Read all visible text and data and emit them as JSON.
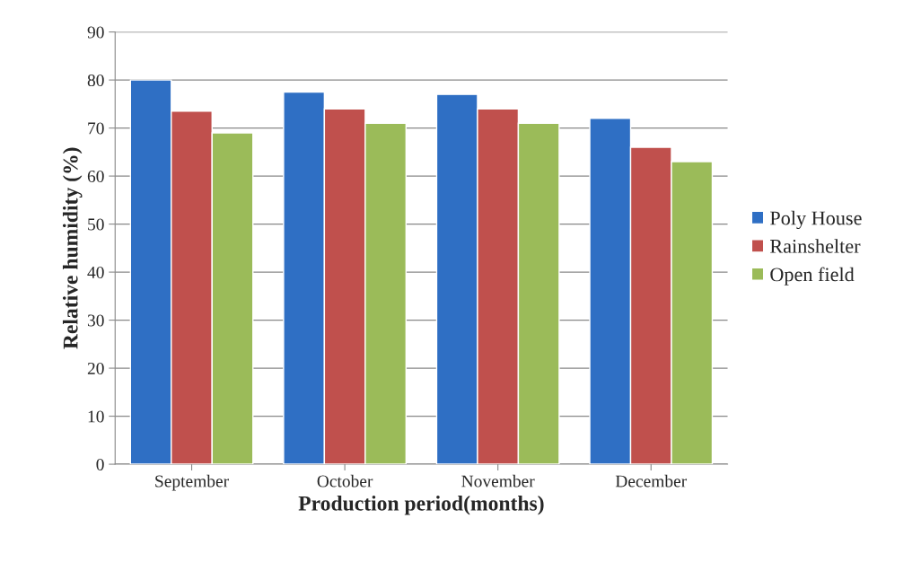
{
  "chart_data": {
    "type": "bar",
    "xlabel": "Production period(months)",
    "ylabel": "Relative humidity (%)",
    "categories": [
      "September",
      "October",
      "November",
      "December"
    ],
    "series": [
      {
        "name": "Poly House",
        "color": "#2f6fc4",
        "values": [
          80,
          77.5,
          77,
          72
        ]
      },
      {
        "name": "Rainshelter",
        "color": "#c0504d",
        "values": [
          73.5,
          74,
          74,
          66
        ]
      },
      {
        "name": "Open field",
        "color": "#9bbb59",
        "values": [
          69,
          71,
          71,
          63
        ]
      }
    ],
    "ylim": [
      0,
      90
    ],
    "yticks": [
      0,
      10,
      20,
      30,
      40,
      50,
      60,
      70,
      80,
      90
    ],
    "grid": "y",
    "legend": "right"
  }
}
